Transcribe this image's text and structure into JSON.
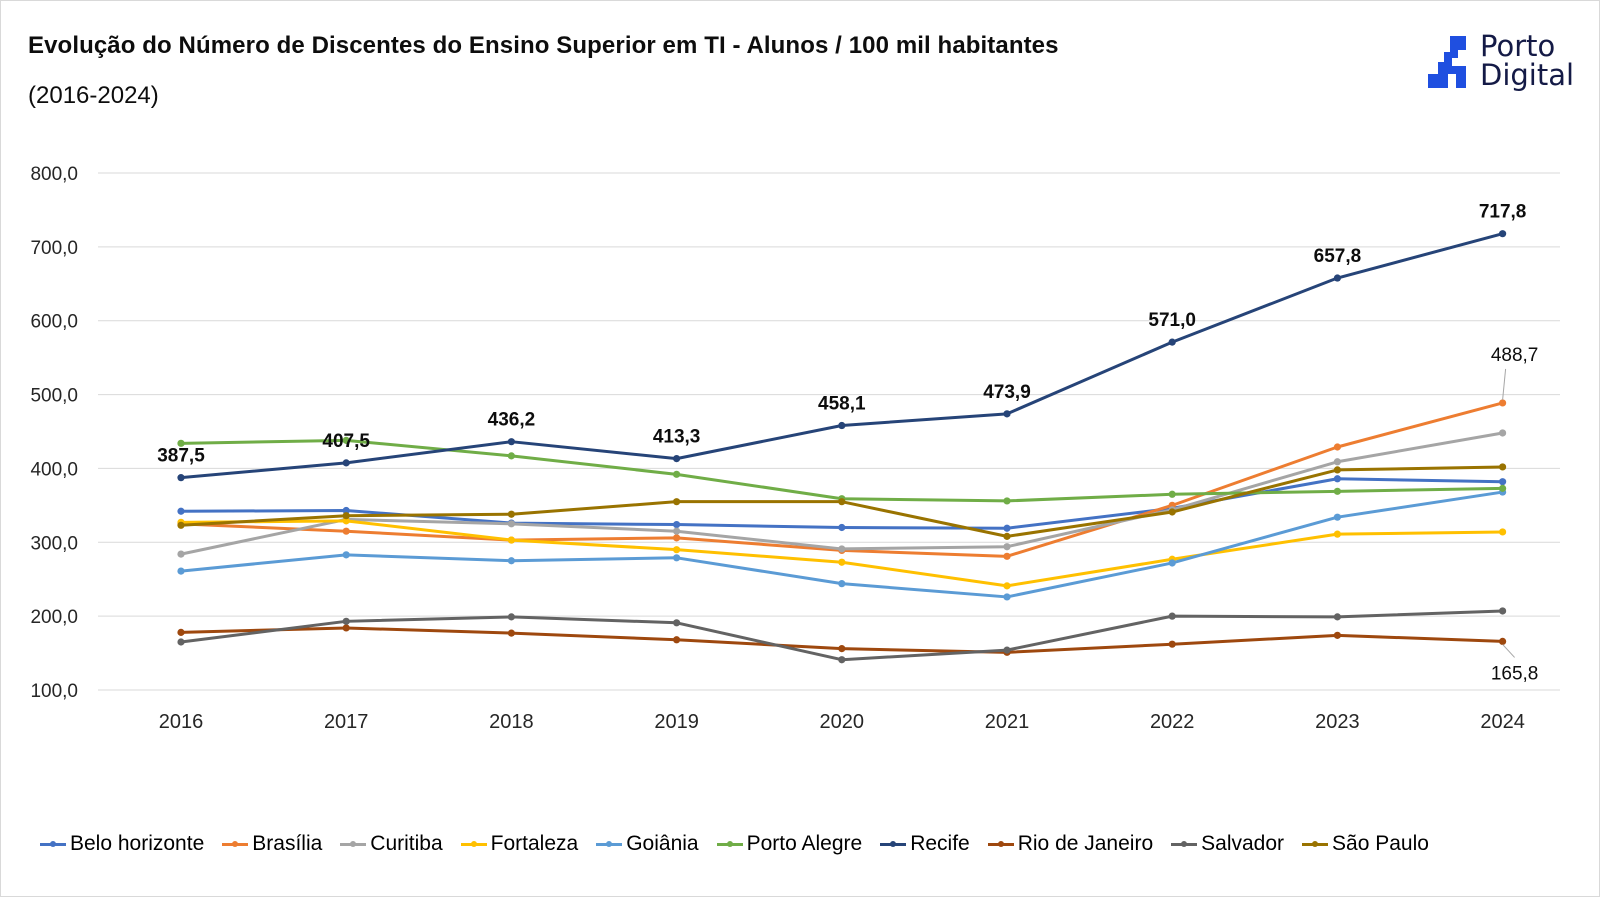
{
  "header": {
    "title": "Evolução do Número de Discentes do Ensino Superior em TI - Alunos / 100 mil habitantes",
    "subtitle": "(2016-2024)",
    "logo": {
      "line1": "Porto",
      "line2": "Digital",
      "icon": "porto-digital-logo-icon",
      "icon_color": "#1f4fe0",
      "text_color": "#141a46"
    }
  },
  "chart_data": {
    "type": "line",
    "title": "Evolução do Número de Discentes do Ensino Superior em TI - Alunos / 100 mil habitantes",
    "subtitle": "(2016-2024)",
    "xlabel": "",
    "ylabel": "",
    "x": [
      "2016",
      "2017",
      "2018",
      "2019",
      "2020",
      "2021",
      "2022",
      "2023",
      "2024"
    ],
    "ylim": [
      100,
      800
    ],
    "yticks": [
      100,
      200,
      300,
      400,
      500,
      600,
      700,
      800
    ],
    "ytick_labels": [
      "100,0",
      "200,0",
      "300,0",
      "400,0",
      "500,0",
      "600,0",
      "700,0",
      "800,0"
    ],
    "grid": true,
    "legend_position": "bottom",
    "series": [
      {
        "name": "Belo horizonte",
        "color": "#4472c4",
        "values": [
          342,
          343,
          326,
          324,
          320,
          319,
          346,
          386,
          382
        ]
      },
      {
        "name": "Brasília",
        "color": "#ed7d31",
        "values": [
          325,
          315,
          303,
          306,
          289,
          281,
          350,
          429,
          488.7
        ],
        "labels": {
          "8": "488,7"
        }
      },
      {
        "name": "Curitiba",
        "color": "#a5a5a5",
        "values": [
          284,
          331,
          325,
          315,
          291,
          294,
          344,
          409,
          448
        ]
      },
      {
        "name": "Fortaleza",
        "color": "#ffc000",
        "values": [
          327,
          329,
          303,
          290,
          273,
          241,
          277,
          311,
          314
        ]
      },
      {
        "name": "Goiânia",
        "color": "#5b9bd5",
        "values": [
          261,
          283,
          275,
          279,
          244,
          226,
          272,
          334,
          368
        ]
      },
      {
        "name": "Porto Alegre",
        "color": "#70ad47",
        "values": [
          434,
          438,
          417,
          392,
          359,
          356,
          365,
          369,
          373
        ]
      },
      {
        "name": "Recife",
        "color": "#264478",
        "values": [
          387.5,
          407.5,
          436.2,
          413.3,
          458.1,
          473.9,
          571.0,
          657.8,
          717.8
        ],
        "labels": {
          "0": "387,5",
          "1": "407,5",
          "2": "436,2",
          "3": "413,3",
          "4": "458,1",
          "5": "473,9",
          "6": "571,0",
          "7": "657,8",
          "8": "717,8"
        }
      },
      {
        "name": "Rio de Janeiro",
        "color": "#9e480e",
        "values": [
          178,
          184,
          177,
          168,
          156,
          151,
          162,
          174,
          165.8
        ],
        "labels": {
          "8": "165,8"
        }
      },
      {
        "name": "Salvador",
        "color": "#636363",
        "values": [
          165,
          193,
          199,
          191,
          141,
          154,
          200,
          199,
          207
        ]
      },
      {
        "name": "São Paulo",
        "color": "#997300",
        "values": [
          323,
          336,
          338,
          355,
          355,
          308,
          341,
          398,
          402
        ]
      }
    ]
  }
}
